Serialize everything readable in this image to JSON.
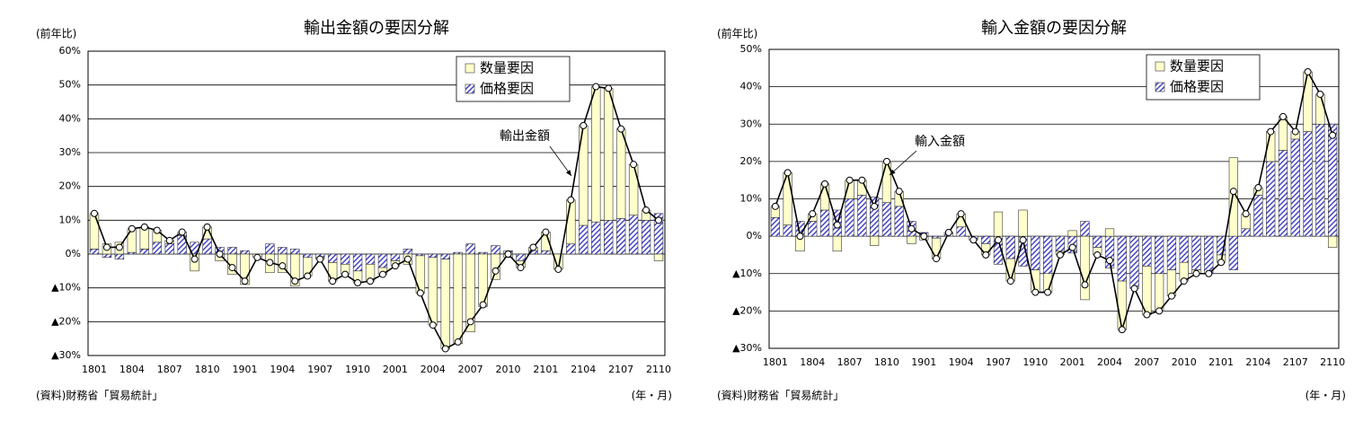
{
  "chart_data": [
    {
      "type": "bar",
      "title": "輸出金額の要因分解",
      "y_label": "(前年比)",
      "source": "(資料)財務省「貿易統計」",
      "x_unit": "(年・月)",
      "categories": [
        "1801",
        null,
        null,
        "1804",
        null,
        null,
        "1807",
        null,
        null,
        "1810",
        null,
        null,
        "1901",
        null,
        null,
        "1904",
        null,
        null,
        "1907",
        null,
        null,
        "1910",
        null,
        null,
        "2001",
        null,
        null,
        "2004",
        null,
        null,
        "2007",
        null,
        null,
        "2010",
        null,
        null,
        "2101",
        null,
        null,
        "2104",
        null,
        null,
        "2107",
        null,
        null,
        "2110"
      ],
      "ylim": [
        -30,
        60
      ],
      "yticks": [
        {
          "value": -30,
          "label": "▲30%"
        },
        {
          "value": -20,
          "label": "▲20%"
        },
        {
          "value": -10,
          "label": "▲10%"
        },
        {
          "value": 0,
          "label": "0%"
        },
        {
          "value": 10,
          "label": "10%"
        },
        {
          "value": 20,
          "label": "20%"
        },
        {
          "value": 30,
          "label": "30%"
        },
        {
          "value": 40,
          "label": "40%"
        },
        {
          "value": 50,
          "label": "50%"
        },
        {
          "value": 60,
          "label": "60%"
        }
      ],
      "grid": true,
      "stacked": true,
      "legend": "upper right",
      "series": [
        {
          "name": "数量要因",
          "color": "#ffffcc",
          "values": [
            10.5,
            3,
            3.5,
            7,
            6.5,
            3.5,
            1,
            1,
            -5,
            3.5,
            -2,
            -6,
            -9,
            -1,
            -5.5,
            -5.5,
            -9.5,
            -5.5,
            -0.5,
            -5.5,
            -3,
            -3.5,
            -5,
            -2,
            -1.5,
            -3,
            -11,
            -20,
            -26.5,
            -26.5,
            -23,
            -15.5,
            -7.5,
            -1,
            -2,
            1,
            5.5,
            -4.5,
            13,
            29.5,
            40,
            39,
            26.5,
            15,
            3,
            -2
          ]
        },
        {
          "name": "価格要因",
          "color": "#4646c8",
          "values": [
            1.5,
            -1,
            -1.5,
            0.5,
            1.5,
            3.5,
            3,
            5.5,
            3.5,
            4.5,
            2,
            2,
            1,
            0,
            3,
            2,
            1.5,
            -1,
            -1,
            -2.5,
            -3,
            -5,
            -3,
            -4,
            -2,
            1.5,
            -0.5,
            -1,
            -1.5,
            0.5,
            3,
            0.5,
            2.5,
            1,
            -2,
            1,
            1,
            0,
            3,
            8.5,
            9.5,
            10,
            10.5,
            11.5,
            10,
            12
          ]
        }
      ],
      "line": {
        "label": "輸出金額",
        "color": "#000000",
        "values": [
          12,
          2,
          2,
          7.5,
          8,
          7,
          4,
          6.5,
          -1.5,
          8,
          0,
          -4,
          -8,
          -1,
          -2.5,
          -3.5,
          -8,
          -6.5,
          -1.5,
          -8,
          -6,
          -8.5,
          -8,
          -6,
          -3.5,
          -1.5,
          -11.5,
          -21,
          -28,
          -26,
          -20,
          -15,
          -5,
          0,
          -4,
          2,
          6.5,
          -4.5,
          16,
          38,
          49.5,
          49,
          37,
          26.5,
          13,
          10
        ]
      }
    },
    {
      "type": "bar",
      "title": "輸入金額の要因分解",
      "y_label": "(前年比)",
      "source": "(資料)財務省「貿易統計」",
      "x_unit": "(年・月)",
      "categories": [
        "1801",
        null,
        null,
        "1804",
        null,
        null,
        "1807",
        null,
        null,
        "1810",
        null,
        null,
        "1901",
        null,
        null,
        "1904",
        null,
        null,
        "1907",
        null,
        null,
        "1910",
        null,
        null,
        "2001",
        null,
        null,
        "2004",
        null,
        null,
        "2007",
        null,
        null,
        "2010",
        null,
        null,
        "2101",
        null,
        null,
        "2104",
        null,
        null,
        "2107",
        null,
        null,
        "2110"
      ],
      "ylim": [
        -30,
        50
      ],
      "yticks": [
        {
          "value": -30,
          "label": "▲30%"
        },
        {
          "value": -20,
          "label": "▲20%"
        },
        {
          "value": -10,
          "label": "▲10%"
        },
        {
          "value": 0,
          "label": "0%"
        },
        {
          "value": 10,
          "label": "10%"
        },
        {
          "value": 20,
          "label": "20%"
        },
        {
          "value": 30,
          "label": "30%"
        },
        {
          "value": 40,
          "label": "40%"
        },
        {
          "value": 50,
          "label": "50%"
        }
      ],
      "grid": true,
      "stacked": true,
      "legend": "upper right",
      "series": [
        {
          "name": "数量要因",
          "color": "#ffffcc",
          "values": [
            3,
            14,
            -4,
            2,
            7,
            -4,
            5,
            4,
            -2.5,
            11,
            4,
            -2,
            -1,
            -5.5,
            0,
            3.5,
            0,
            -3,
            6.5,
            -6,
            7,
            -6,
            -5,
            -1,
            1.5,
            -17,
            -2,
            2,
            -13,
            0,
            -13,
            -10,
            -7,
            -5,
            -1,
            0,
            -2,
            21,
            4,
            2,
            8,
            9,
            2,
            16,
            8,
            -3
          ]
        },
        {
          "name": "価格要因",
          "color": "#4646c8",
          "values": [
            5,
            3,
            4,
            4,
            7,
            7,
            10,
            11,
            10.5,
            9,
            8,
            4,
            1,
            -0.5,
            1,
            2.5,
            -1,
            -2,
            -7.5,
            -6,
            -8,
            -9,
            -10,
            -4,
            -4.5,
            4,
            -3,
            -8.5,
            -12,
            -14,
            -8,
            -10,
            -9,
            -7,
            -9,
            -10,
            -5,
            -9,
            2,
            11,
            20,
            23,
            26,
            28,
            30,
            30
          ]
        }
      ],
      "line": {
        "label": "輸入金額",
        "color": "#000000",
        "values": [
          8,
          17,
          0,
          6,
          14,
          3,
          15,
          15,
          8,
          20,
          12,
          2,
          0,
          -6,
          1,
          6,
          -1,
          -5,
          -1,
          -12,
          -1,
          -15,
          -15,
          -5,
          -3,
          -13,
          -5,
          -6.5,
          -25,
          -14,
          -21,
          -20,
          -16,
          -12,
          -10,
          -10,
          -7,
          12,
          6,
          13,
          28,
          32,
          28,
          44,
          38,
          27
        ]
      }
    }
  ]
}
